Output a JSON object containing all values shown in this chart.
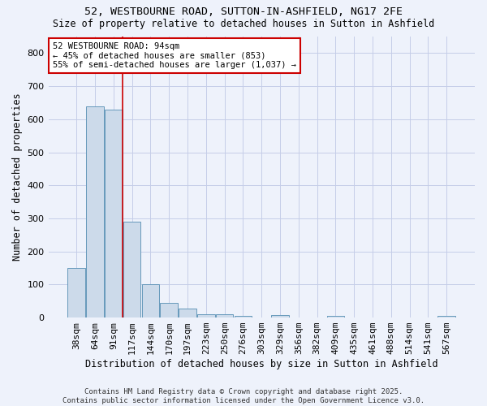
{
  "title1": "52, WESTBOURNE ROAD, SUTTON-IN-ASHFIELD, NG17 2FE",
  "title2": "Size of property relative to detached houses in Sutton in Ashfield",
  "xlabel": "Distribution of detached houses by size in Sutton in Ashfield",
  "ylabel": "Number of detached properties",
  "bin_labels": [
    "38sqm",
    "64sqm",
    "91sqm",
    "117sqm",
    "144sqm",
    "170sqm",
    "197sqm",
    "223sqm",
    "250sqm",
    "276sqm",
    "303sqm",
    "329sqm",
    "356sqm",
    "382sqm",
    "409sqm",
    "435sqm",
    "461sqm",
    "488sqm",
    "514sqm",
    "541sqm",
    "567sqm"
  ],
  "bar_values": [
    150,
    640,
    630,
    290,
    100,
    44,
    28,
    10,
    10,
    6,
    0,
    8,
    0,
    0,
    5,
    0,
    0,
    0,
    0,
    0,
    6
  ],
  "bar_color": "#ccdaea",
  "bar_edge_color": "#6699bb",
  "annotation_text": "52 WESTBOURNE ROAD: 94sqm\n← 45% of detached houses are smaller (853)\n55% of semi-detached houses are larger (1,037) →",
  "annotation_box_color": "#ffffff",
  "annotation_box_edge_color": "#cc0000",
  "vline_color": "#cc0000",
  "background_color": "#eef2fb",
  "grid_color": "#c5cde8",
  "footer_text": "Contains HM Land Registry data © Crown copyright and database right 2025.\nContains public sector information licensed under the Open Government Licence v3.0.",
  "ylim": [
    0,
    850
  ],
  "yticks": [
    0,
    100,
    200,
    300,
    400,
    500,
    600,
    700,
    800
  ],
  "vline_x": 2.5
}
